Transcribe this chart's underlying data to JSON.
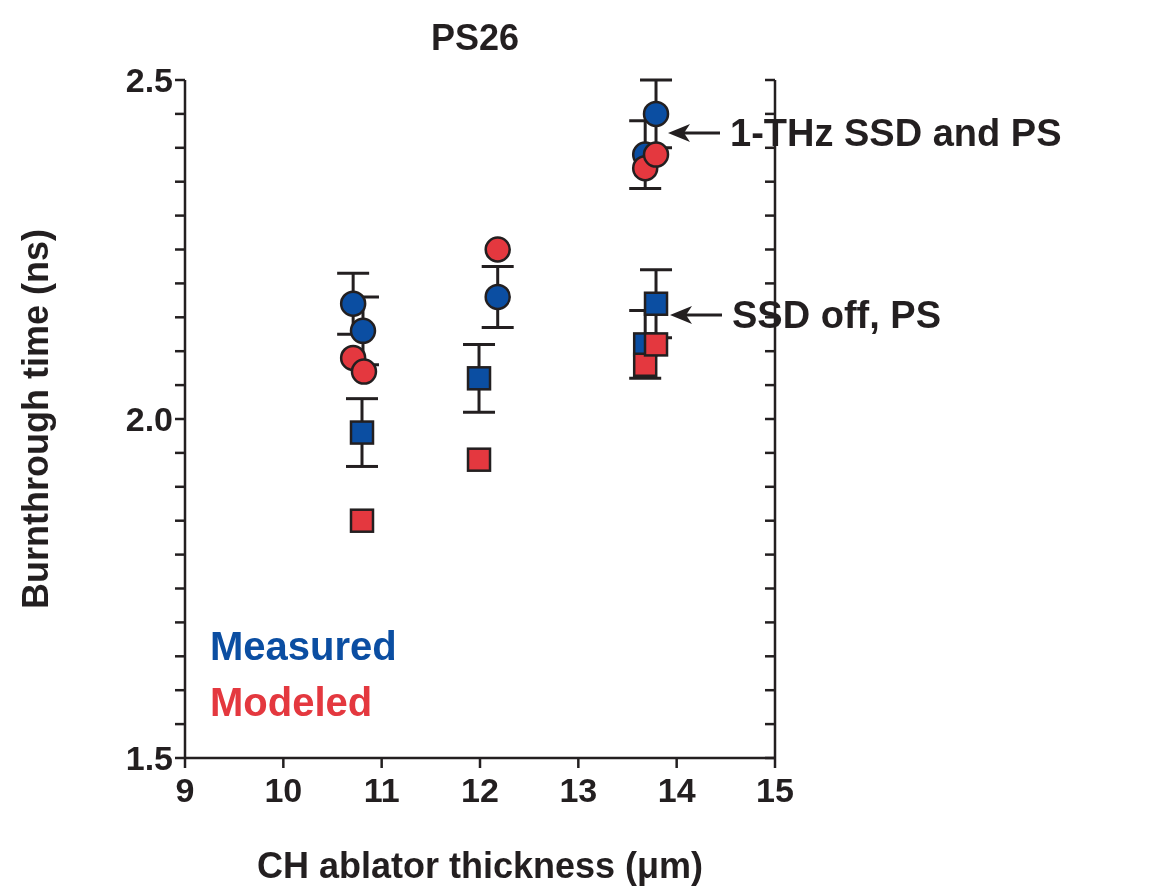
{
  "chart_data": {
    "type": "scatter",
    "title": "PS26",
    "xlabel": "CH ablator thickness (μm)",
    "ylabel": "Burnthrough time (ns)",
    "xlim": [
      9,
      15
    ],
    "xticks": [
      9,
      10,
      11,
      12,
      13,
      14,
      15
    ],
    "ylim": [
      1.5,
      2.5
    ],
    "yticks": [
      1.5,
      {
        "value": 1.55,
        "label": null
      },
      {
        "value": 1.6,
        "label": null
      },
      {
        "value": 1.65,
        "label": null
      },
      {
        "value": 1.7,
        "label": null
      },
      {
        "value": 1.75,
        "label": null
      },
      {
        "value": 1.8,
        "label": null
      },
      {
        "value": 1.85,
        "label": null
      },
      {
        "value": 1.9,
        "label": null
      },
      {
        "value": 1.95,
        "label": null
      },
      {
        "value": 2.0,
        "label": "2.0"
      },
      {
        "value": 2.05,
        "label": null
      },
      {
        "value": 2.1,
        "label": null
      },
      {
        "value": 2.15,
        "label": null
      },
      {
        "value": 2.2,
        "label": null
      },
      {
        "value": 2.25,
        "label": null
      },
      {
        "value": 2.3,
        "label": null
      },
      {
        "value": 2.35,
        "label": null
      },
      {
        "value": 2.4,
        "label": null
      },
      {
        "value": 2.45,
        "label": null
      },
      2.5
    ],
    "grid": false,
    "legend": "bottom left",
    "series": [
      {
        "name": "Measured",
        "color": "#0b4ea2",
        "marker": "circle",
        "x": [
          10.71,
          10.81,
          12.18,
          13.68,
          13.79
        ],
        "values": [
          2.17,
          2.13,
          2.18,
          2.39,
          2.45
        ],
        "errors": [
          0.045,
          0.05,
          0.045,
          0.05,
          0.05
        ]
      },
      {
        "name": "Modeled",
        "color": "#e4383f",
        "marker": "circle",
        "x": [
          10.71,
          10.82,
          12.18,
          13.68,
          13.79
        ],
        "values": [
          2.09,
          2.07,
          2.25,
          2.37,
          2.39
        ]
      },
      {
        "color": "#0b4ea2",
        "marker": "square",
        "x": [
          10.8,
          11.99,
          13.68,
          13.79
        ],
        "values": [
          1.98,
          2.06,
          2.11,
          2.17
        ],
        "errors": [
          0.05,
          0.05,
          0.05,
          0.05
        ]
      },
      {
        "color": "#e4383f",
        "marker": "square",
        "x": [
          10.8,
          11.99,
          13.68,
          13.79
        ],
        "values": [
          1.85,
          1.94,
          2.08,
          2.11
        ]
      }
    ],
    "annotations": [
      "1-THz SSD and PS",
      "SSD off, PS"
    ]
  }
}
